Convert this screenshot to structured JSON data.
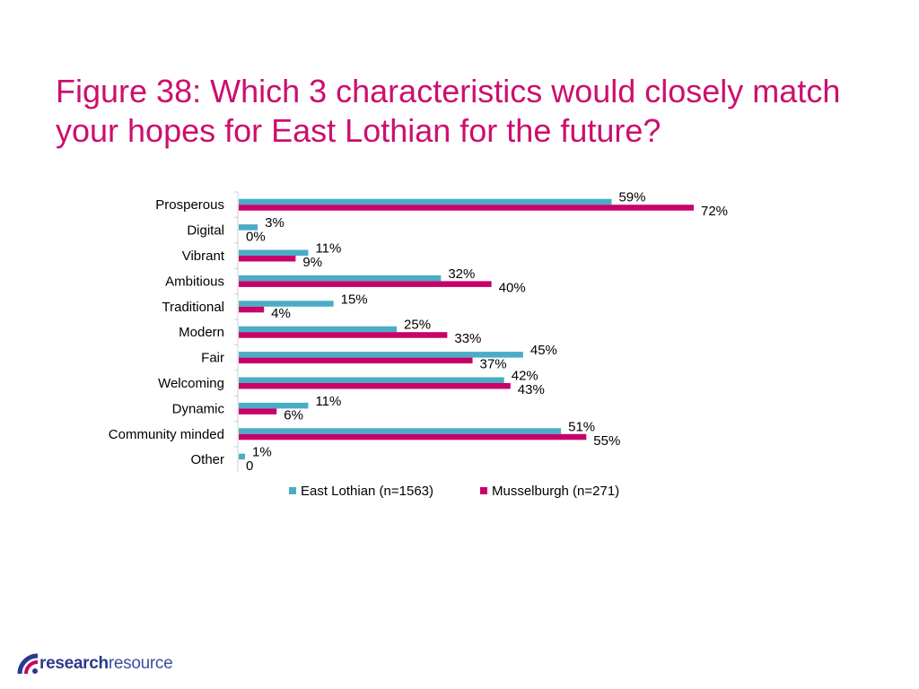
{
  "title": "Figure 38: Which 3 characteristics would closely match your hopes for East Lothian for the future?",
  "logo": {
    "bold": "research",
    "light": "resource"
  },
  "colors": {
    "title": "#cc0f6e",
    "east_lothian": "#4bacc6",
    "musselburgh": "#c8006a"
  },
  "chart_data": {
    "type": "bar",
    "orientation": "horizontal",
    "categories": [
      "Prosperous",
      "Digital",
      "Vibrant",
      "Ambitious",
      "Traditional",
      "Modern",
      "Fair",
      "Welcoming",
      "Dynamic",
      "Community minded",
      "Other"
    ],
    "series": [
      {
        "name": "East Lothian (n=1563)",
        "values": [
          59,
          3,
          11,
          32,
          15,
          25,
          45,
          42,
          11,
          51,
          1
        ],
        "labels": [
          "59%",
          "3%",
          "11%",
          "32%",
          "15%",
          "25%",
          "45%",
          "42%",
          "11%",
          "51%",
          "1%"
        ]
      },
      {
        "name": "Musselburgh (n=271)",
        "values": [
          72,
          0,
          9,
          40,
          4,
          33,
          37,
          43,
          6,
          55,
          0
        ],
        "labels": [
          "72%",
          "0%",
          "9%",
          "40%",
          "4%",
          "33%",
          "37%",
          "43%",
          "6%",
          "55%",
          "0"
        ]
      }
    ],
    "xlim": [
      0,
      80
    ],
    "grid": false,
    "legend_position": "bottom"
  }
}
